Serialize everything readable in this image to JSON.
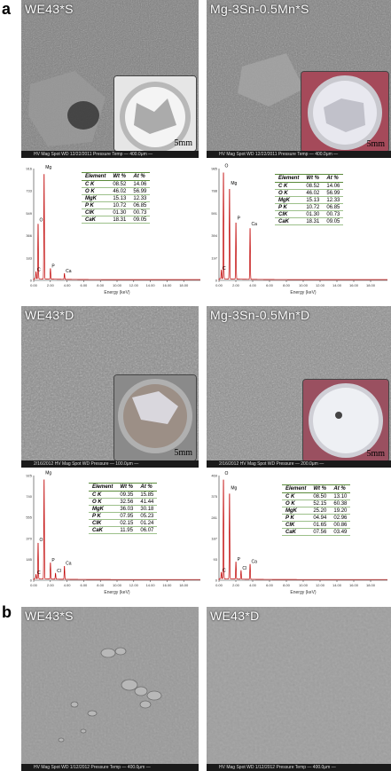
{
  "panel_a": {
    "letter": "a",
    "images": [
      {
        "label": "WE43*S",
        "scale": "5mm",
        "statusbar": "HV  Mag  Spot  WD  12/22/2011  Pressure  Temp  — 400.0μm —"
      },
      {
        "label": "Mg-3Sn-0.5Mn*S",
        "scale": "5mm",
        "statusbar": "HV  Mag  Spot  WD  12/22/2011  Pressure  Temp  — 400.0μm —"
      },
      {
        "label": "WE43*D",
        "scale": "5mm",
        "statusbar": "2/16/2012  HV  Mag  Spot  WD  Pressure  — 100.0μm —"
      },
      {
        "label": "Mg-3Sn-0.5Mn*D",
        "scale": "5mm",
        "statusbar": "2/16/2012  HV  Mag  Spot  WD  Pressure  — 200.0μm —"
      }
    ],
    "tables": [
      {
        "headers": [
          "Element",
          "Wt %",
          "At %"
        ],
        "rows": [
          [
            "C K",
            "08.52",
            "14.06"
          ],
          [
            "O K",
            "46.02",
            "56.99"
          ],
          [
            "MgK",
            "15.13",
            "12.33"
          ],
          [
            "P K",
            "10.72",
            "06.85"
          ],
          [
            "ClK",
            "01.30",
            "00.73"
          ],
          [
            "CaK",
            "18.31",
            "09.05"
          ]
        ]
      },
      {
        "headers": [
          "Element",
          "Wt %",
          "At %"
        ],
        "rows": [
          [
            "C K",
            "08.52",
            "14.06"
          ],
          [
            "O K",
            "46.02",
            "56.99"
          ],
          [
            "MgK",
            "15.13",
            "12.33"
          ],
          [
            "P K",
            "10.72",
            "06.85"
          ],
          [
            "ClK",
            "01.30",
            "00.73"
          ],
          [
            "CaK",
            "18.31",
            "09.05"
          ]
        ]
      },
      {
        "headers": [
          "Element",
          "Wt %",
          "At %"
        ],
        "rows": [
          [
            "C K",
            "09.35",
            "15.85"
          ],
          [
            "O K",
            "32.56",
            "41.44"
          ],
          [
            "MgK",
            "36.03",
            "30.18"
          ],
          [
            "P K",
            "07.95",
            "05.23"
          ],
          [
            "ClK",
            "02.15",
            "01.24"
          ],
          [
            "CaK",
            "11.95",
            "06.07"
          ]
        ]
      },
      {
        "headers": [
          "Element",
          "Wt %",
          "At %"
        ],
        "rows": [
          [
            "C K",
            "08.50",
            "13.10"
          ],
          [
            "O K",
            "52.15",
            "60.38"
          ],
          [
            "MgK",
            "25.20",
            "19.20"
          ],
          [
            "P K",
            "04.94",
            "02.96"
          ],
          [
            "ClK",
            "01.65",
            "00.86"
          ],
          [
            "CaK",
            "07.56",
            "03.49"
          ]
        ]
      }
    ]
  },
  "panel_b": {
    "letter": "b",
    "images": [
      {
        "label": "WE43*S",
        "statusbar": "HV  Mag  Spot  WD  1/12/2012  Pressure  Temp  — 400.0μm —"
      },
      {
        "label": "WE43*D",
        "statusbar": "HV  Mag  Spot  WD  1/12/2012  Pressure  Temp  — 400.0μm —"
      }
    ]
  },
  "chart_data": [
    {
      "type": "line",
      "xlabel": "Energy (keV)",
      "x_ticks": [
        "0.00",
        "2.00",
        "4.00",
        "6.00",
        "8.00",
        "10.00",
        "12.00",
        "14.00",
        "16.00",
        "18.00"
      ],
      "y_ticks": [
        "0",
        "183",
        "366",
        "549",
        "733",
        "916"
      ],
      "xlim": [
        0,
        20
      ],
      "ylim": [
        0,
        916
      ],
      "peaks": [
        {
          "label": "C",
          "x": 0.28,
          "y": 60
        },
        {
          "label": "O",
          "x": 0.53,
          "y": 470
        },
        {
          "label": "Mg",
          "x": 1.25,
          "y": 900
        },
        {
          "label": "P",
          "x": 2.01,
          "y": 90
        },
        {
          "label": "Ca",
          "x": 3.69,
          "y": 50
        }
      ],
      "color": "#c00000"
    },
    {
      "type": "line",
      "xlabel": "Energy (keV)",
      "x_ticks": [
        "0.00",
        "2.00",
        "4.00",
        "6.00",
        "8.00",
        "10.00",
        "12.00",
        "14.00",
        "16.00",
        "18.00"
      ],
      "y_ticks": [
        "0",
        "197",
        "394",
        "591",
        "788",
        "985"
      ],
      "xlim": [
        0,
        20
      ],
      "ylim": [
        0,
        985
      ],
      "peaks": [
        {
          "label": "C",
          "x": 0.28,
          "y": 80
        },
        {
          "label": "O",
          "x": 0.53,
          "y": 980
        },
        {
          "label": "Mg",
          "x": 1.25,
          "y": 830
        },
        {
          "label": "P",
          "x": 2.01,
          "y": 520
        },
        {
          "label": "Ca",
          "x": 3.69,
          "y": 470
        }
      ],
      "color": "#c00000"
    },
    {
      "type": "line",
      "xlabel": "Energy (keV)",
      "x_ticks": [
        "0.00",
        "2.00",
        "4.00",
        "6.00",
        "8.00",
        "10.00",
        "12.00",
        "14.00",
        "16.00",
        "18.00"
      ],
      "y_ticks": [
        "0",
        "185",
        "370",
        "555",
        "740",
        "925"
      ],
      "xlim": [
        0,
        20
      ],
      "ylim": [
        0,
        925
      ],
      "peaks": [
        {
          "label": "C",
          "x": 0.28,
          "y": 40
        },
        {
          "label": "O",
          "x": 0.53,
          "y": 330
        },
        {
          "label": "Mg",
          "x": 1.25,
          "y": 920
        },
        {
          "label": "P",
          "x": 2.01,
          "y": 150
        },
        {
          "label": "Cl",
          "x": 2.62,
          "y": 55
        },
        {
          "label": "Ca",
          "x": 3.69,
          "y": 120
        }
      ],
      "color": "#c00000"
    },
    {
      "type": "line",
      "xlabel": "Energy (keV)",
      "x_ticks": [
        "0.00",
        "2.00",
        "4.00",
        "6.00",
        "8.00",
        "10.00",
        "12.00",
        "14.00",
        "16.00",
        "18.00"
      ],
      "y_ticks": [
        "0",
        "93",
        "187",
        "281",
        "375",
        "469"
      ],
      "xlim": [
        0,
        20
      ],
      "ylim": [
        0,
        469
      ],
      "peaks": [
        {
          "label": "C",
          "x": 0.28,
          "y": 30
        },
        {
          "label": "O",
          "x": 0.53,
          "y": 465
        },
        {
          "label": "Mg",
          "x": 1.25,
          "y": 400
        },
        {
          "label": "P",
          "x": 2.01,
          "y": 80
        },
        {
          "label": "Cl",
          "x": 2.62,
          "y": 40
        },
        {
          "label": "Ca",
          "x": 3.69,
          "y": 70
        }
      ],
      "color": "#c00000"
    }
  ]
}
